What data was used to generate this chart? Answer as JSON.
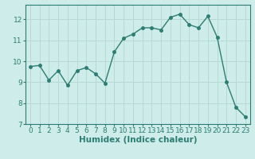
{
  "x": [
    0,
    1,
    2,
    3,
    4,
    5,
    6,
    7,
    8,
    9,
    10,
    11,
    12,
    13,
    14,
    15,
    16,
    17,
    18,
    19,
    20,
    21,
    22,
    23
  ],
  "y": [
    9.75,
    9.8,
    9.1,
    9.55,
    8.85,
    9.55,
    9.7,
    9.4,
    8.95,
    10.45,
    11.1,
    11.3,
    11.6,
    11.6,
    11.5,
    12.1,
    12.25,
    11.75,
    11.6,
    12.15,
    11.15,
    9.0,
    7.8,
    7.35
  ],
  "line_color": "#2e7d72",
  "marker": "o",
  "markersize": 2.5,
  "linewidth": 1.0,
  "bg_color": "#cdecea",
  "grid_color": "#b8d8d6",
  "tick_color": "#2e7d72",
  "xlabel": "Humidex (Indice chaleur)",
  "xlabel_fontsize": 7.5,
  "ylim": [
    7,
    12.7
  ],
  "xlim": [
    -0.5,
    23.5
  ],
  "yticks": [
    7,
    8,
    9,
    10,
    11,
    12
  ],
  "xticks": [
    0,
    1,
    2,
    3,
    4,
    5,
    6,
    7,
    8,
    9,
    10,
    11,
    12,
    13,
    14,
    15,
    16,
    17,
    18,
    19,
    20,
    21,
    22,
    23
  ],
  "tick_fontsize": 6.5
}
